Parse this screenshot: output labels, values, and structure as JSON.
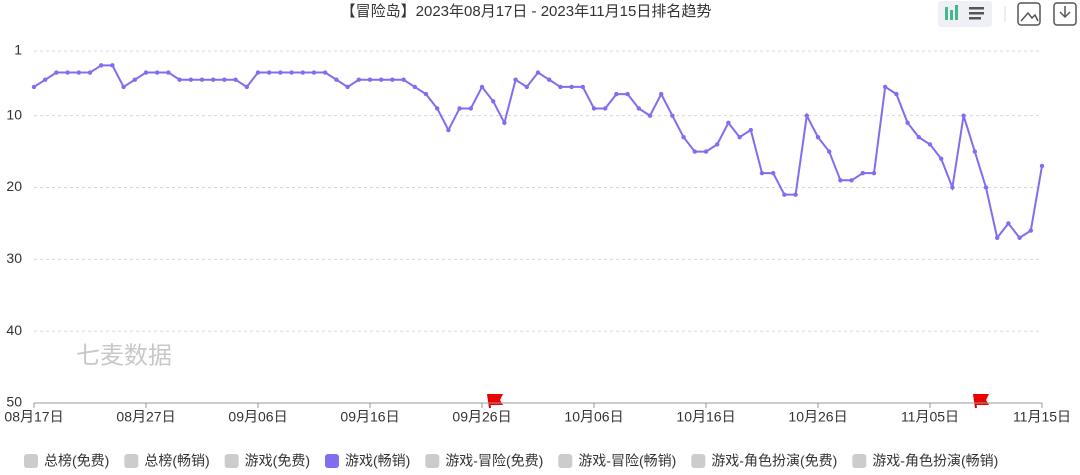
{
  "chart_data": {
    "type": "line",
    "title": "【冒险岛】2023年08月17日 - 2023年11月15日排名趋势",
    "watermark": "七麦数据",
    "categories": [
      "08月17日",
      null,
      null,
      null,
      null,
      null,
      null,
      null,
      null,
      null,
      "08月27日",
      null,
      null,
      null,
      null,
      null,
      null,
      null,
      null,
      null,
      "09月06日",
      null,
      null,
      null,
      null,
      null,
      null,
      null,
      null,
      null,
      "09月16日",
      null,
      null,
      null,
      null,
      null,
      null,
      null,
      null,
      null,
      "09月26日",
      null,
      null,
      null,
      null,
      null,
      null,
      null,
      null,
      null,
      "10月06日",
      null,
      null,
      null,
      null,
      null,
      null,
      null,
      null,
      null,
      "10月16日",
      null,
      null,
      null,
      null,
      null,
      null,
      null,
      null,
      null,
      "10月26日",
      null,
      null,
      null,
      null,
      null,
      null,
      null,
      null,
      null,
      "11月05日",
      null,
      null,
      null,
      null,
      null,
      null,
      null,
      null,
      null,
      "11月15日"
    ],
    "series": [
      {
        "color": "#7f6ff0",
        "values": [
          6,
          5,
          4,
          4,
          4,
          4,
          3,
          3,
          6,
          5,
          4,
          4,
          4,
          5,
          5,
          5,
          5,
          5,
          5,
          6,
          4,
          4,
          4,
          4,
          4,
          4,
          4,
          5,
          6,
          5,
          5,
          5,
          5,
          5,
          6,
          7,
          9,
          12,
          9,
          9,
          6,
          8,
          11,
          5,
          6,
          4,
          5,
          6,
          6,
          6,
          9,
          9,
          7,
          7,
          9,
          10,
          7,
          10,
          13,
          15,
          15,
          14,
          11,
          13,
          12,
          18,
          18,
          21,
          21,
          10,
          13,
          15,
          19,
          19,
          18,
          18,
          6,
          7,
          11,
          13,
          14,
          16,
          20,
          10,
          15,
          20,
          27,
          25,
          27,
          26,
          17
        ]
      }
    ],
    "ylim": [
      1,
      50
    ],
    "y_inverted": true,
    "yticks": [
      1,
      10,
      20,
      30,
      40,
      50
    ],
    "grid": true,
    "legend_items": [
      "总榜(免费)",
      "总榜(畅销)",
      "游戏(免费)",
      "游戏(畅销)",
      "游戏-冒险(免费)",
      "游戏-冒险(畅销)",
      "游戏-角色扮演(免费)",
      "游戏-角色扮演(畅销)"
    ],
    "legend_active": 3,
    "legend_inactive_color": "#cccccc"
  }
}
